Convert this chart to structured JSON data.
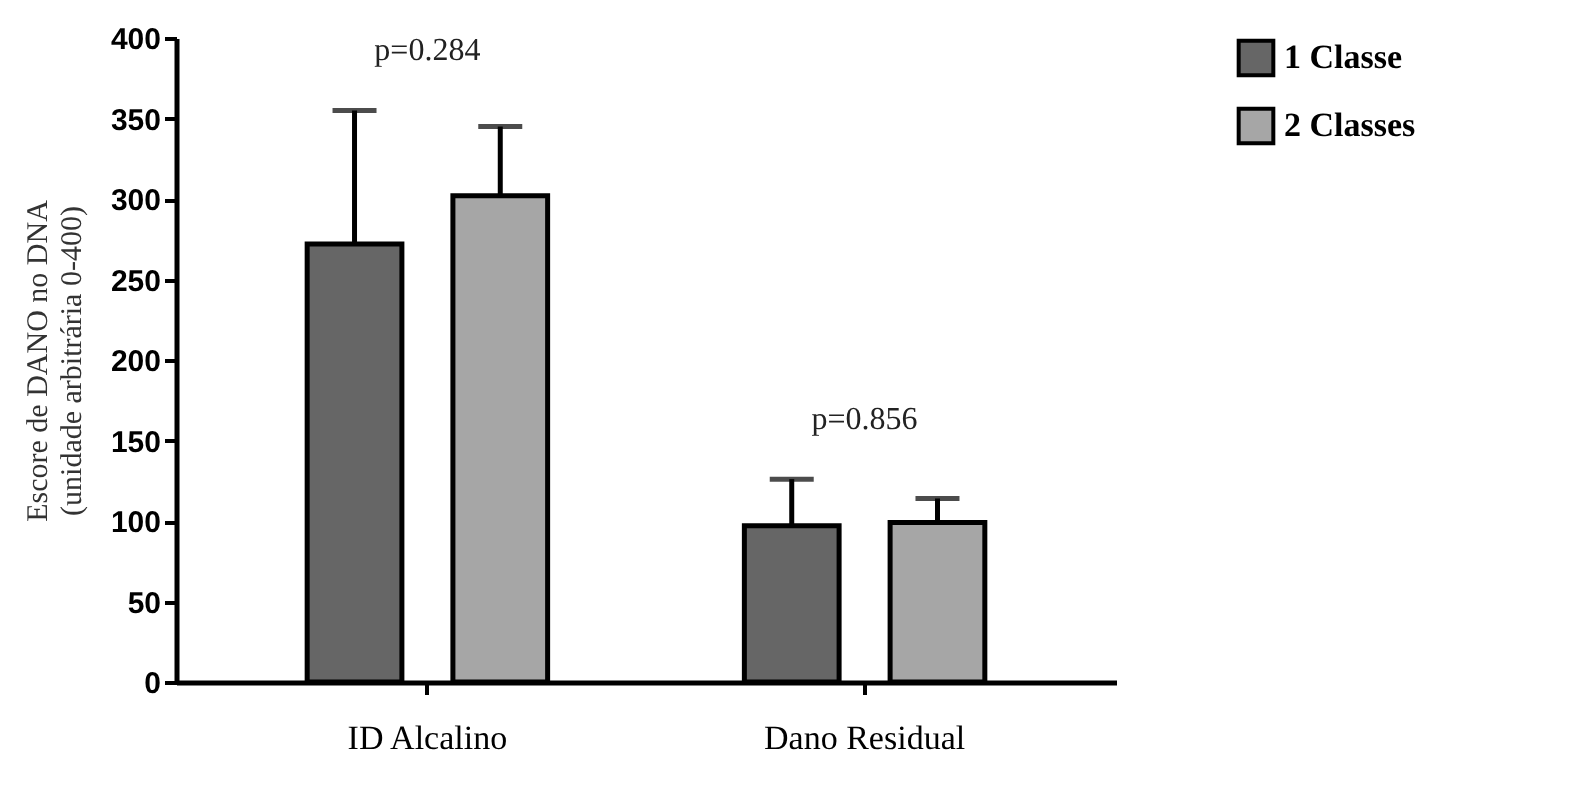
{
  "chart_data": {
    "type": "bar",
    "ylabel": "Escore de DANO no DNA\n(unidade arbitrária 0-400)",
    "categories": [
      "ID Alcalino",
      "Dano Residual"
    ],
    "series": [
      {
        "name": "1 Classe",
        "color": "#666666",
        "values": [
          272,
          97
        ],
        "errors": [
          [
            272,
            355
          ],
          [
            97,
            126
          ]
        ]
      },
      {
        "name": "2 Classes",
        "color": "#a6a6a6",
        "values": [
          302,
          99
        ],
        "errors": [
          [
            302,
            345
          ],
          [
            99,
            114
          ]
        ]
      }
    ],
    "ylim": [
      0,
      400
    ],
    "yticks": [
      0,
      50,
      100,
      150,
      200,
      250,
      300,
      350,
      400
    ],
    "grid": false,
    "legend": "top right",
    "annotations": [
      "p=0.284",
      "p=0.856"
    ]
  }
}
